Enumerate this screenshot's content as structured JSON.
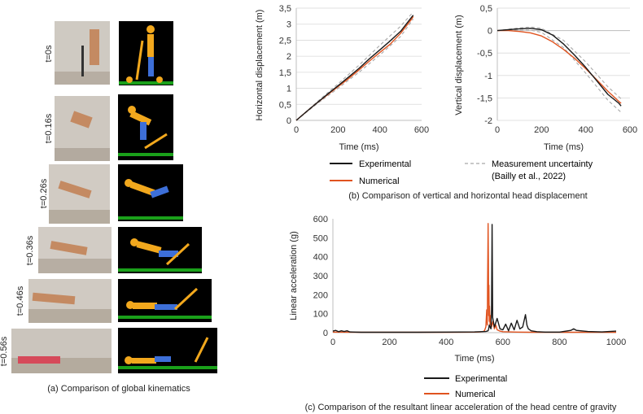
{
  "panel_a": {
    "time_labels": [
      "t=0s",
      "t=0.16s",
      "t=0.26s",
      "t=0.36s",
      "t=0.46s",
      "t=0.56s"
    ],
    "caption": "(a) Comparison of global kinematics",
    "colors": {
      "model_body": "#f2a81d",
      "model_legs": "#3d6fd8",
      "ground": "#1aa01a",
      "background": "#000000"
    }
  },
  "panel_b": {
    "caption": "(b) Comparison of vertical and horizontal head displacement",
    "legend": {
      "experimental": "Experimental",
      "numerical": "Numerical",
      "uncertainty_line1": "Measurement uncertainty",
      "uncertainty_line2": "(Bailly et al., 2022)"
    }
  },
  "panel_c": {
    "caption": "(c) Comparison of the resultant linear acceleration of the head centre of gravity",
    "legend": {
      "experimental": "Experimental",
      "numerical": "Numerical"
    }
  },
  "colors": {
    "experimental": "#1a1a1a",
    "numerical": "#e0531f",
    "uncertainty": "#a8a8a8",
    "grid": "#d9d9d9"
  },
  "chart_data": [
    {
      "type": "line",
      "xlabel": "Time (ms)",
      "ylabel": "Horizontal displacement (m)",
      "xlim": [
        0,
        600
      ],
      "ylim": [
        0,
        3.5
      ],
      "xticks": [
        0,
        200,
        400,
        600
      ],
      "yticks": [
        0,
        0.5,
        1,
        1.5,
        2,
        2.5,
        3,
        3.5
      ],
      "ytick_labels": [
        "0",
        "0,5",
        "1",
        "1,5",
        "2",
        "2,5",
        "3",
        "3,5"
      ],
      "grid": true,
      "series": [
        {
          "name": "Experimental",
          "x": [
            0,
            50,
            100,
            150,
            200,
            250,
            300,
            350,
            400,
            450,
            500,
            550,
            560
          ],
          "y": [
            0,
            0.28,
            0.55,
            0.82,
            1.08,
            1.35,
            1.62,
            1.92,
            2.2,
            2.48,
            2.78,
            3.2,
            3.28
          ]
        },
        {
          "name": "Numerical",
          "x": [
            0,
            50,
            100,
            150,
            200,
            250,
            300,
            350,
            400,
            450,
            500,
            550,
            560
          ],
          "y": [
            0,
            0.28,
            0.55,
            0.8,
            1.05,
            1.3,
            1.57,
            1.85,
            2.12,
            2.38,
            2.72,
            3.14,
            3.24
          ]
        },
        {
          "name": "Upper uncertainty",
          "x": [
            0,
            100,
            200,
            300,
            400,
            500,
            560
          ],
          "y": [
            0,
            0.58,
            1.14,
            1.72,
            2.34,
            2.94,
            3.38
          ]
        },
        {
          "name": "Lower uncertainty",
          "x": [
            0,
            100,
            200,
            300,
            400,
            500,
            560
          ],
          "y": [
            0,
            0.52,
            1.0,
            1.5,
            2.04,
            2.62,
            3.16
          ]
        }
      ]
    },
    {
      "type": "line",
      "xlabel": "Time (ms)",
      "ylabel": "Vertical displacement (m)",
      "xlim": [
        0,
        600
      ],
      "ylim": [
        -2,
        0.5
      ],
      "xticks": [
        0,
        200,
        400,
        600
      ],
      "yticks": [
        -2,
        -1.5,
        -1,
        -0.5,
        0,
        0.5
      ],
      "ytick_labels": [
        "-2",
        "-1,5",
        "-1",
        "-0,5",
        "0",
        "0,5"
      ],
      "grid": true,
      "series": [
        {
          "name": "Experimental",
          "x": [
            0,
            50,
            100,
            150,
            200,
            250,
            300,
            350,
            400,
            450,
            500,
            550,
            560
          ],
          "y": [
            0,
            0.02,
            0.04,
            0.05,
            0.02,
            -0.1,
            -0.3,
            -0.55,
            -0.82,
            -1.12,
            -1.42,
            -1.62,
            -1.68
          ]
        },
        {
          "name": "Numerical",
          "x": [
            0,
            50,
            100,
            150,
            200,
            250,
            300,
            350,
            400,
            450,
            500,
            550,
            560
          ],
          "y": [
            0,
            0.0,
            -0.02,
            -0.05,
            -0.12,
            -0.25,
            -0.42,
            -0.62,
            -0.85,
            -1.1,
            -1.35,
            -1.58,
            -1.62
          ]
        },
        {
          "name": "Upper uncertainty",
          "x": [
            0,
            100,
            150,
            200,
            300,
            400,
            500,
            560
          ],
          "y": [
            0,
            0.06,
            0.08,
            0.05,
            -0.22,
            -0.7,
            -1.25,
            -1.52
          ]
        },
        {
          "name": "Lower uncertainty",
          "x": [
            0,
            100,
            150,
            200,
            300,
            400,
            500,
            560
          ],
          "y": [
            0,
            0.01,
            0.01,
            -0.04,
            -0.38,
            -0.95,
            -1.55,
            -1.82
          ]
        }
      ]
    },
    {
      "type": "line",
      "xlabel": "Time (ms)",
      "ylabel": "Linear acceleration (g)",
      "xlim": [
        0,
        1000
      ],
      "ylim": [
        0,
        600
      ],
      "xticks": [
        0,
        200,
        400,
        600,
        800,
        1000
      ],
      "yticks": [
        0,
        100,
        200,
        300,
        400,
        500,
        600
      ],
      "grid": false,
      "series": [
        {
          "name": "Experimental",
          "x": [
            0,
            10,
            20,
            30,
            40,
            50,
            60,
            80,
            100,
            150,
            200,
            300,
            400,
            500,
            520,
            540,
            548,
            550,
            552,
            555,
            558,
            560,
            562,
            564,
            570,
            580,
            590,
            600,
            610,
            620,
            630,
            640,
            650,
            660,
            670,
            680,
            685,
            690,
            700,
            720,
            750,
            800,
            840,
            850,
            860,
            900,
            950,
            1000
          ],
          "y": [
            8,
            12,
            5,
            10,
            6,
            10,
            4,
            3,
            2,
            2,
            2,
            2,
            3,
            4,
            5,
            6,
            10,
            20,
            40,
            30,
            20,
            120,
            570,
            80,
            30,
            75,
            20,
            15,
            45,
            10,
            50,
            15,
            65,
            20,
            30,
            95,
            40,
            20,
            10,
            5,
            3,
            3,
            12,
            20,
            12,
            6,
            4,
            8
          ]
        },
        {
          "name": "Numerical",
          "x": [
            0,
            100,
            200,
            300,
            400,
            500,
            520,
            530,
            535,
            540,
            543,
            545,
            546,
            547,
            548,
            549,
            550,
            551,
            552,
            553,
            555,
            557,
            560,
            565,
            570,
            575,
            580,
            590,
            600,
            650,
            700,
            750,
            800,
            900,
            1000
          ],
          "y": [
            3,
            2,
            2,
            2,
            2,
            3,
            4,
            6,
            10,
            30,
            120,
            40,
            240,
            420,
            575,
            380,
            90,
            250,
            60,
            140,
            40,
            90,
            30,
            60,
            20,
            40,
            15,
            8,
            5,
            3,
            2,
            2,
            2,
            2,
            2
          ]
        }
      ]
    }
  ]
}
